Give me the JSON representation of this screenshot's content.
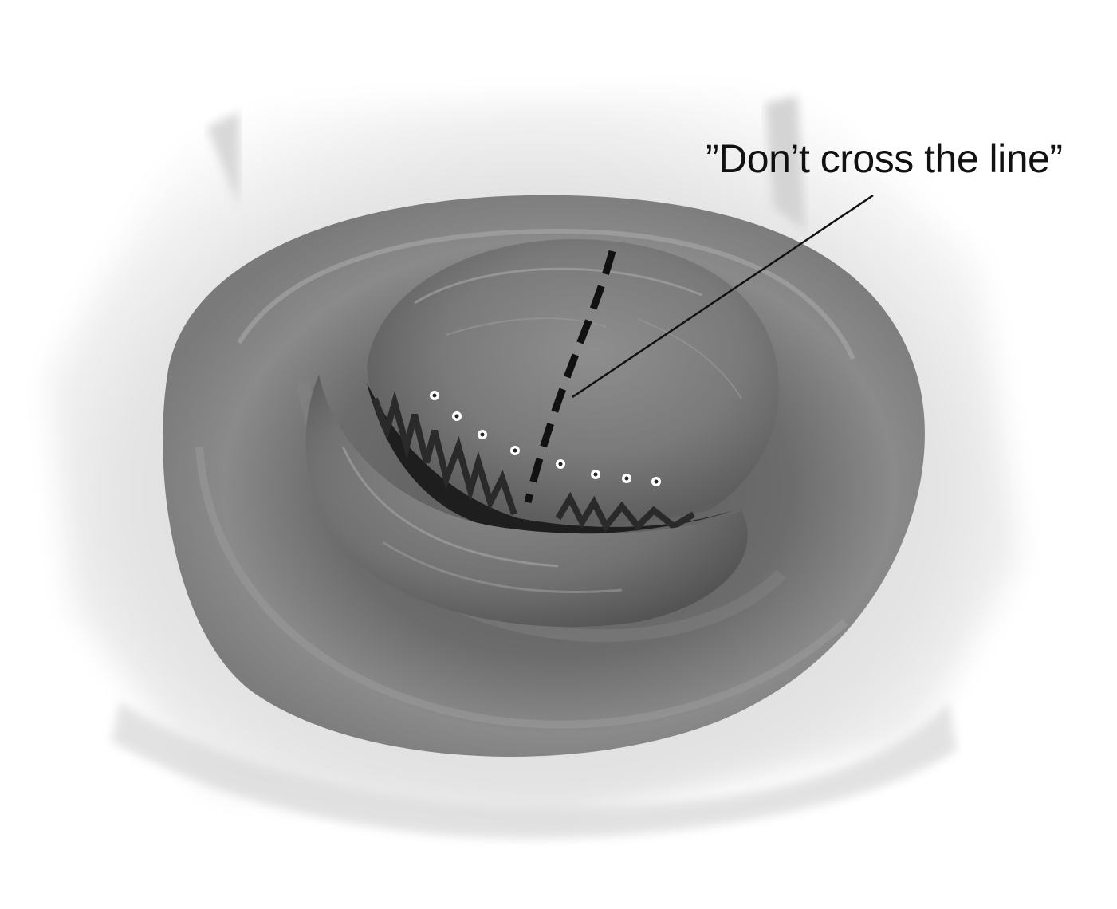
{
  "annotation": {
    "label": "”Don’t cross the line”"
  },
  "colors": {
    "background": "#ffffff",
    "tissue_dark": "#3a3a3a",
    "tissue_mid": "#6e6e6e",
    "tissue_light": "#9a9a9a",
    "drape": "#e6e6e6",
    "marker": "#111111",
    "suture_point": "#ffffff"
  },
  "markings": {
    "dashed_line": "incision-limit-line",
    "dotted_points": 8
  }
}
